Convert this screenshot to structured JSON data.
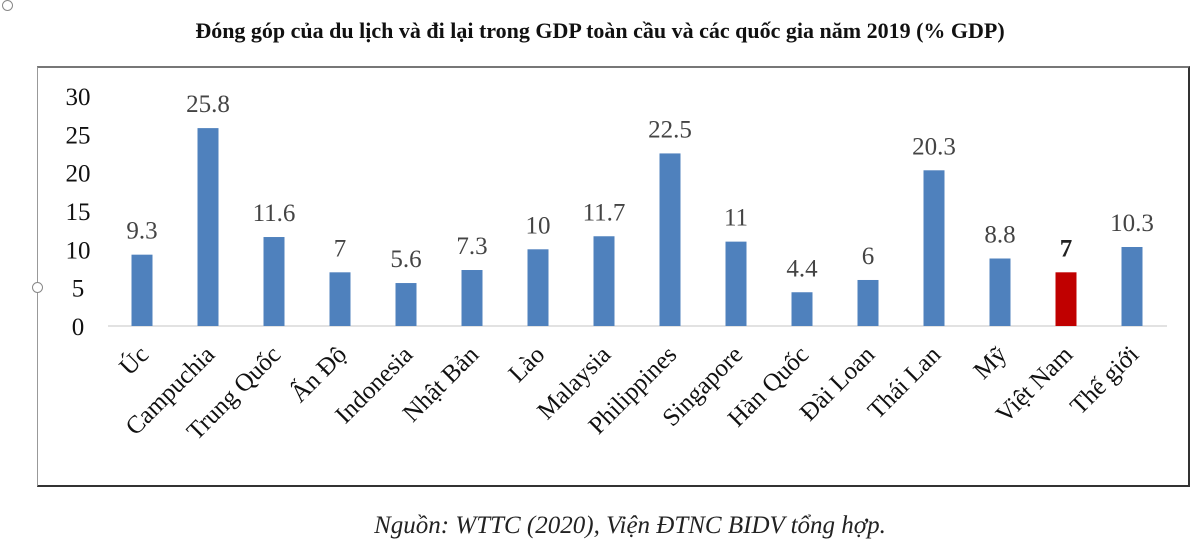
{
  "chart_data": {
    "type": "bar",
    "title": "Đóng góp của du lịch và đi lại trong GDP toàn cầu và các quốc gia năm 2019 (% GDP)",
    "categories": [
      "Úc",
      "Campuchia",
      "Trung Quốc",
      "Ấn Độ",
      "Indonesia",
      "Nhật Bản",
      "Lào",
      "Malaysia",
      "Philippines",
      "Singapore",
      "Hàn Quốc",
      "Đài Loan",
      "Thái Lan",
      "Mỹ",
      "Việt Nam",
      "Thế giới"
    ],
    "values": [
      9.3,
      25.8,
      11.6,
      7,
      5.6,
      7.3,
      10,
      11.7,
      22.5,
      11,
      4.4,
      6,
      20.3,
      8.8,
      7,
      10.3
    ],
    "data_labels": [
      "9.3",
      "25.8",
      "11.6",
      "7",
      "5.6",
      "7.3",
      "10",
      "11.7",
      "22.5",
      "11",
      "4.4",
      "6",
      "20.3",
      "8.8",
      "7",
      "10.3"
    ],
    "yticks": [
      "0",
      "5",
      "10",
      "15",
      "20",
      "25",
      "30"
    ],
    "ylim": [
      0,
      30
    ],
    "grid": false,
    "colors": {
      "default": "#4f81bd",
      "highlight": "#c00000"
    },
    "highlight_category": "Việt Nam"
  },
  "source": "Nguồn: WTTC (2020), Viện ĐTNC BIDV tổng hợp."
}
